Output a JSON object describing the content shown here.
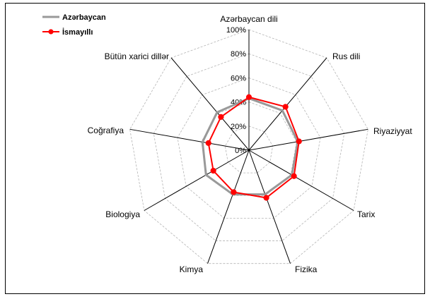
{
  "chart_data": {
    "type": "radar",
    "categories": [
      "Azərbaycan dili",
      "Rus dili",
      "Riyaziyyat",
      "Tarix",
      "Fizika",
      "Kimya",
      "Biologiya",
      "Coğrafiya",
      "Bütün xarici dillər"
    ],
    "ticks": [
      "0%",
      "20%",
      "40%",
      "60%",
      "80%",
      "100%"
    ],
    "rmax": 100,
    "legend_position": "top-left",
    "grid": true,
    "series": [
      {
        "name": "Azərbaycan",
        "color": "#999999",
        "marker": "none",
        "values": [
          43,
          43,
          41,
          41,
          39,
          39,
          41,
          39,
          41
        ]
      },
      {
        "name": "İsmayıllı",
        "color": "#ff0000",
        "marker": "circle",
        "values": [
          44,
          47,
          42,
          43,
          42,
          37,
          34,
          34,
          36
        ]
      }
    ]
  }
}
